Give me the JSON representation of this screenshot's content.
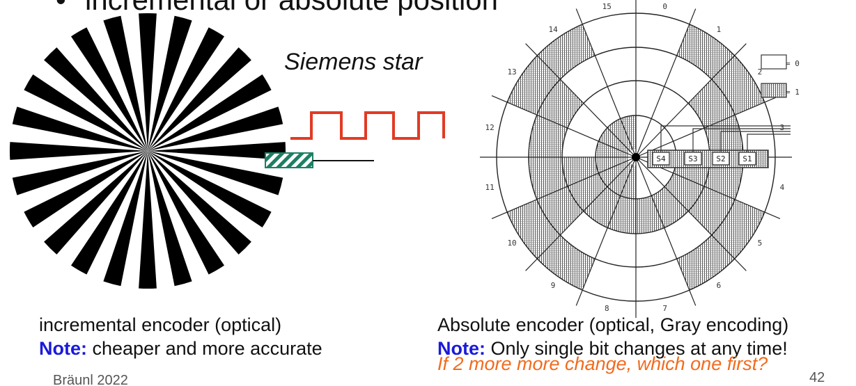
{
  "heading": {
    "bullet": "•",
    "text": "incremental or absolute position"
  },
  "siemens_star": {
    "label": "Siemens star",
    "num_segments": 24,
    "fill_color": "#000000",
    "sensor_color": "#1d7f63",
    "signal_color": "#e23b24"
  },
  "absolute_encoder": {
    "sector_numbers": [
      "0",
      "1",
      "2",
      "3",
      "4",
      "5",
      "6",
      "7",
      "8",
      "9",
      "10",
      "11",
      "12",
      "13",
      "14",
      "15"
    ],
    "sensors": [
      "S4",
      "S3",
      "S2",
      "S1"
    ],
    "legend": [
      {
        "label": "= 0",
        "pattern": "blank"
      },
      {
        "label": "= 1",
        "pattern": "hatched"
      }
    ]
  },
  "captions": {
    "left_line1": "incremental encoder (optical)",
    "left_note_label": "Note:",
    "left_note_text": " cheaper and more accurate",
    "right_line1": "Absolute encoder (optical, Gray encoding)",
    "right_note_label": "Note:",
    "right_note_text": " Only single bit changes at any time!",
    "right_question": "If 2 more more change, which one first?"
  },
  "footer": {
    "author": "Bräunl 2022",
    "page": "42"
  }
}
